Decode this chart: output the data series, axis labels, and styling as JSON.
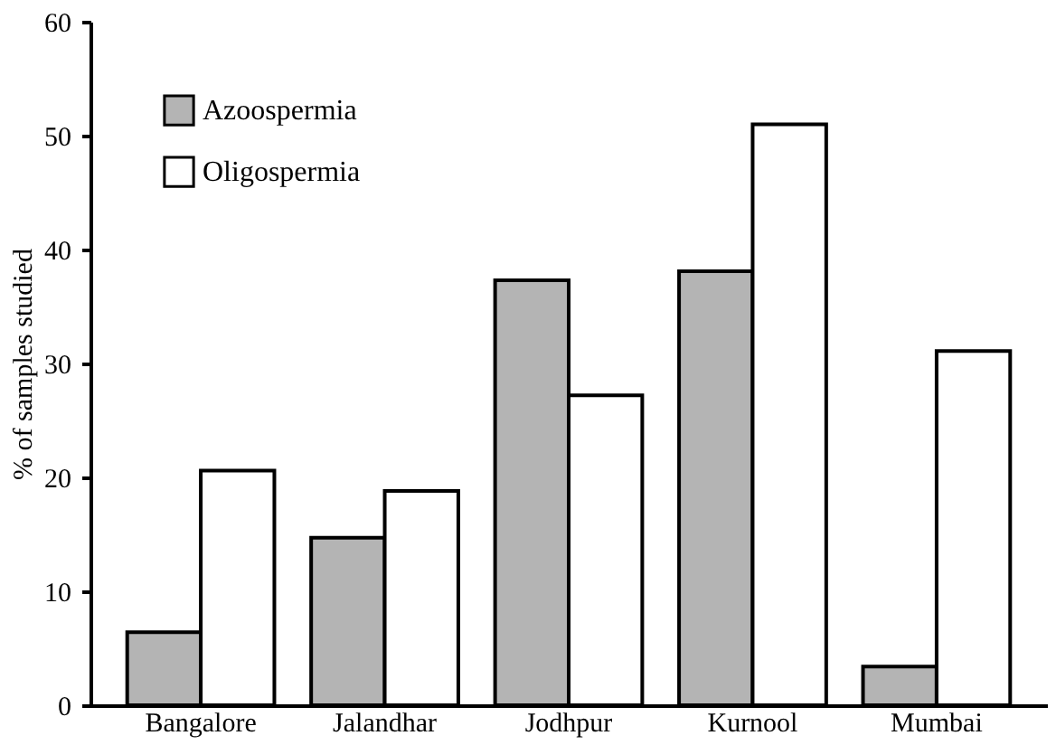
{
  "chart_data": {
    "type": "bar",
    "ylabel": "% of samples studied",
    "categories": [
      "Bangalore",
      "Jalandhar",
      "Jodhpur",
      "Kurnool",
      "Mumbai"
    ],
    "series": [
      {
        "name": "Azoospermia",
        "color": "#b4b4b4",
        "values": [
          6.4,
          14.7,
          37.3,
          38.1,
          3.4
        ]
      },
      {
        "name": "Oligospermia",
        "color": "#ffffff",
        "values": [
          20.6,
          18.8,
          27.2,
          51.0,
          31.1
        ]
      }
    ],
    "ylim": [
      0,
      60
    ],
    "yticks": [
      0,
      10,
      20,
      30,
      40,
      50,
      60
    ],
    "grid": false,
    "legend": "top left"
  }
}
